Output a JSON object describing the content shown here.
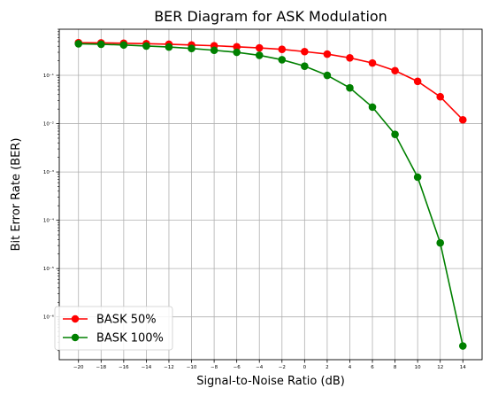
{
  "chart_data": {
    "type": "line",
    "title": "BER Diagram for ASK Modulation",
    "xlabel": "Signal-to-Noise Ratio (dB)",
    "ylabel": "Bit Error Rate (BER)",
    "x": [
      -20,
      -18,
      -16,
      -14,
      -12,
      -10,
      -8,
      -6,
      -4,
      -2,
      0,
      2,
      4,
      6,
      8,
      10,
      12,
      14
    ],
    "x_tick_labels": [
      "−20",
      "−18",
      "−16",
      "−14",
      "−12",
      "−10",
      "−8",
      "−6",
      "−4",
      "−2",
      "0",
      "2",
      "4",
      "6",
      "8",
      "10",
      "12",
      "14"
    ],
    "y_scale": "log",
    "ylim": [
      1.3e-07,
      0.9
    ],
    "xlim": [
      -21.7,
      15.7
    ],
    "y_ticks": [
      1e-06,
      1e-05,
      0.0001,
      0.001,
      0.01,
      0.1
    ],
    "y_tick_labels": [
      "10⁻⁶",
      "10⁻⁵",
      "10⁻⁴",
      "10⁻³",
      "10⁻²",
      "10⁻¹"
    ],
    "grid": true,
    "legend_position": "lower-left",
    "series": [
      {
        "name": "BASK 50%",
        "color": "#ff0000",
        "marker": "circle",
        "values": [
          0.475,
          0.47,
          0.462,
          0.452,
          0.44,
          0.425,
          0.41,
          0.39,
          0.37,
          0.345,
          0.31,
          0.275,
          0.23,
          0.18,
          0.125,
          0.075,
          0.036,
          0.012
        ]
      },
      {
        "name": "BASK 100%",
        "color": "#008000",
        "marker": "circle",
        "values": [
          0.45,
          0.44,
          0.425,
          0.405,
          0.385,
          0.36,
          0.33,
          0.3,
          0.26,
          0.21,
          0.155,
          0.1,
          0.055,
          0.022,
          0.006,
          0.00078,
          3.4e-05,
          2.5e-07
        ]
      }
    ]
  }
}
